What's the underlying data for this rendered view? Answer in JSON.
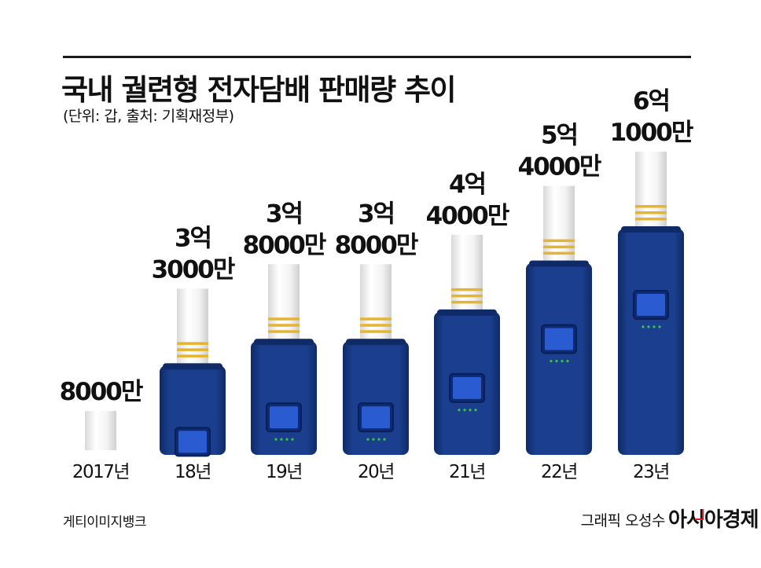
{
  "header": {
    "title": "국내 궐련형 전자담배 판매량 추이",
    "subtitle": "(단위: 갑, 출처: 기획재정부)"
  },
  "footer": {
    "left_credit": "게티이미지뱅크",
    "right_credit": "그래픽 오성수",
    "brand": "아시아경제"
  },
  "colors": {
    "device_blue": "#1b3f8e",
    "device_dark": "#0f2a66",
    "stick_white": "#f2f2f2",
    "gold_band": "#e6b431",
    "led_green": "#3ac34a"
  },
  "chart_data": {
    "type": "bar",
    "categories": [
      "2017년",
      "18년",
      "19년",
      "20년",
      "21년",
      "22년",
      "23년"
    ],
    "values": [
      80000000,
      330000000,
      380000000,
      380000000,
      440000000,
      540000000,
      610000000
    ],
    "value_labels": [
      [
        "8000만"
      ],
      [
        "3억",
        "3000만"
      ],
      [
        "3억",
        "8000만"
      ],
      [
        "3억",
        "8000만"
      ],
      [
        "4억",
        "4000만"
      ],
      [
        "5억",
        "4000만"
      ],
      [
        "6억",
        "1000만"
      ]
    ],
    "title": "국내 궐련형 전자담배 판매량 추이",
    "xlabel": "",
    "ylabel": "",
    "ylim": [
      0,
      610000000
    ],
    "grid": false,
    "legend": "none"
  }
}
